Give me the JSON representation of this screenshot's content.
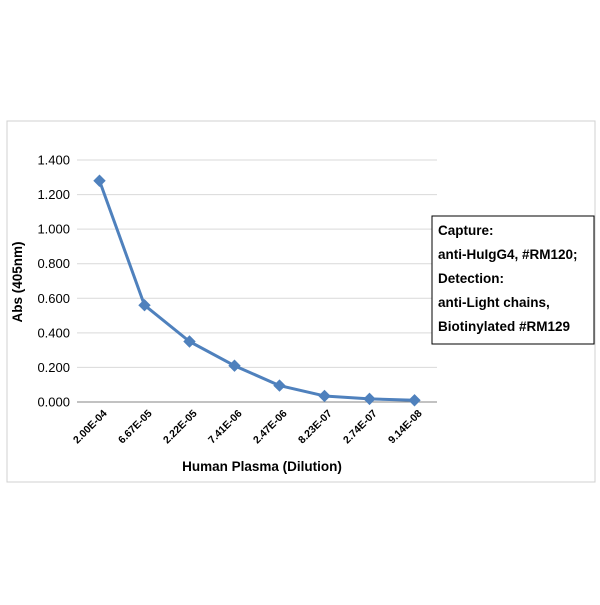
{
  "chart_data": {
    "type": "line",
    "title": "",
    "xlabel": "Human Plasma (Dilution)",
    "ylabel": "Abs (405nm)",
    "categories": [
      "2.00E-04",
      "6.67E-05",
      "2.22E-05",
      "7.41E-06",
      "2.47E-06",
      "8.23E-07",
      "2.74E-07",
      "9.14E-08"
    ],
    "yticks": [
      "0.000",
      "0.200",
      "0.400",
      "0.600",
      "0.800",
      "1.000",
      "1.200",
      "1.400"
    ],
    "ylim": [
      0,
      1.4
    ],
    "grid": true,
    "legend_position": "right",
    "legend_lines": [
      "Capture:",
      "anti-HuIgG4, #RM120;",
      "Detection:",
      "anti-Light chains,",
      "Biotinylated #RM129"
    ],
    "series": [
      {
        "values": [
          1.28,
          0.56,
          0.35,
          0.21,
          0.095,
          0.035,
          0.018,
          0.01
        ],
        "color": "#4F81BD",
        "marker": "diamond"
      }
    ]
  }
}
